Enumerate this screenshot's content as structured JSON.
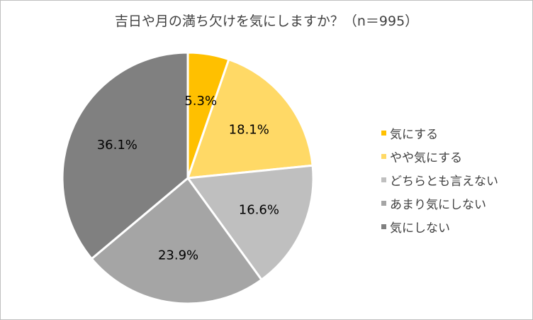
{
  "chart_data": {
    "type": "pie",
    "title": "吉日や月の満ち欠けを気にしますか？（n＝995）",
    "categories": [
      "気にする",
      "やや気にする",
      "どちらとも言えない",
      "あまり気にしない",
      "気にしない"
    ],
    "values": [
      5.3,
      18.1,
      16.6,
      23.9,
      36.1
    ],
    "data_labels": [
      "5.3%",
      "18.1%",
      "16.6%",
      "23.9%",
      "36.1%"
    ],
    "colors": [
      "#ffc000",
      "#ffd966",
      "#bfbfbf",
      "#a5a5a5",
      "#808080"
    ],
    "legend_position": "right",
    "start_angle": "12 o'clock",
    "direction": "clockwise"
  }
}
